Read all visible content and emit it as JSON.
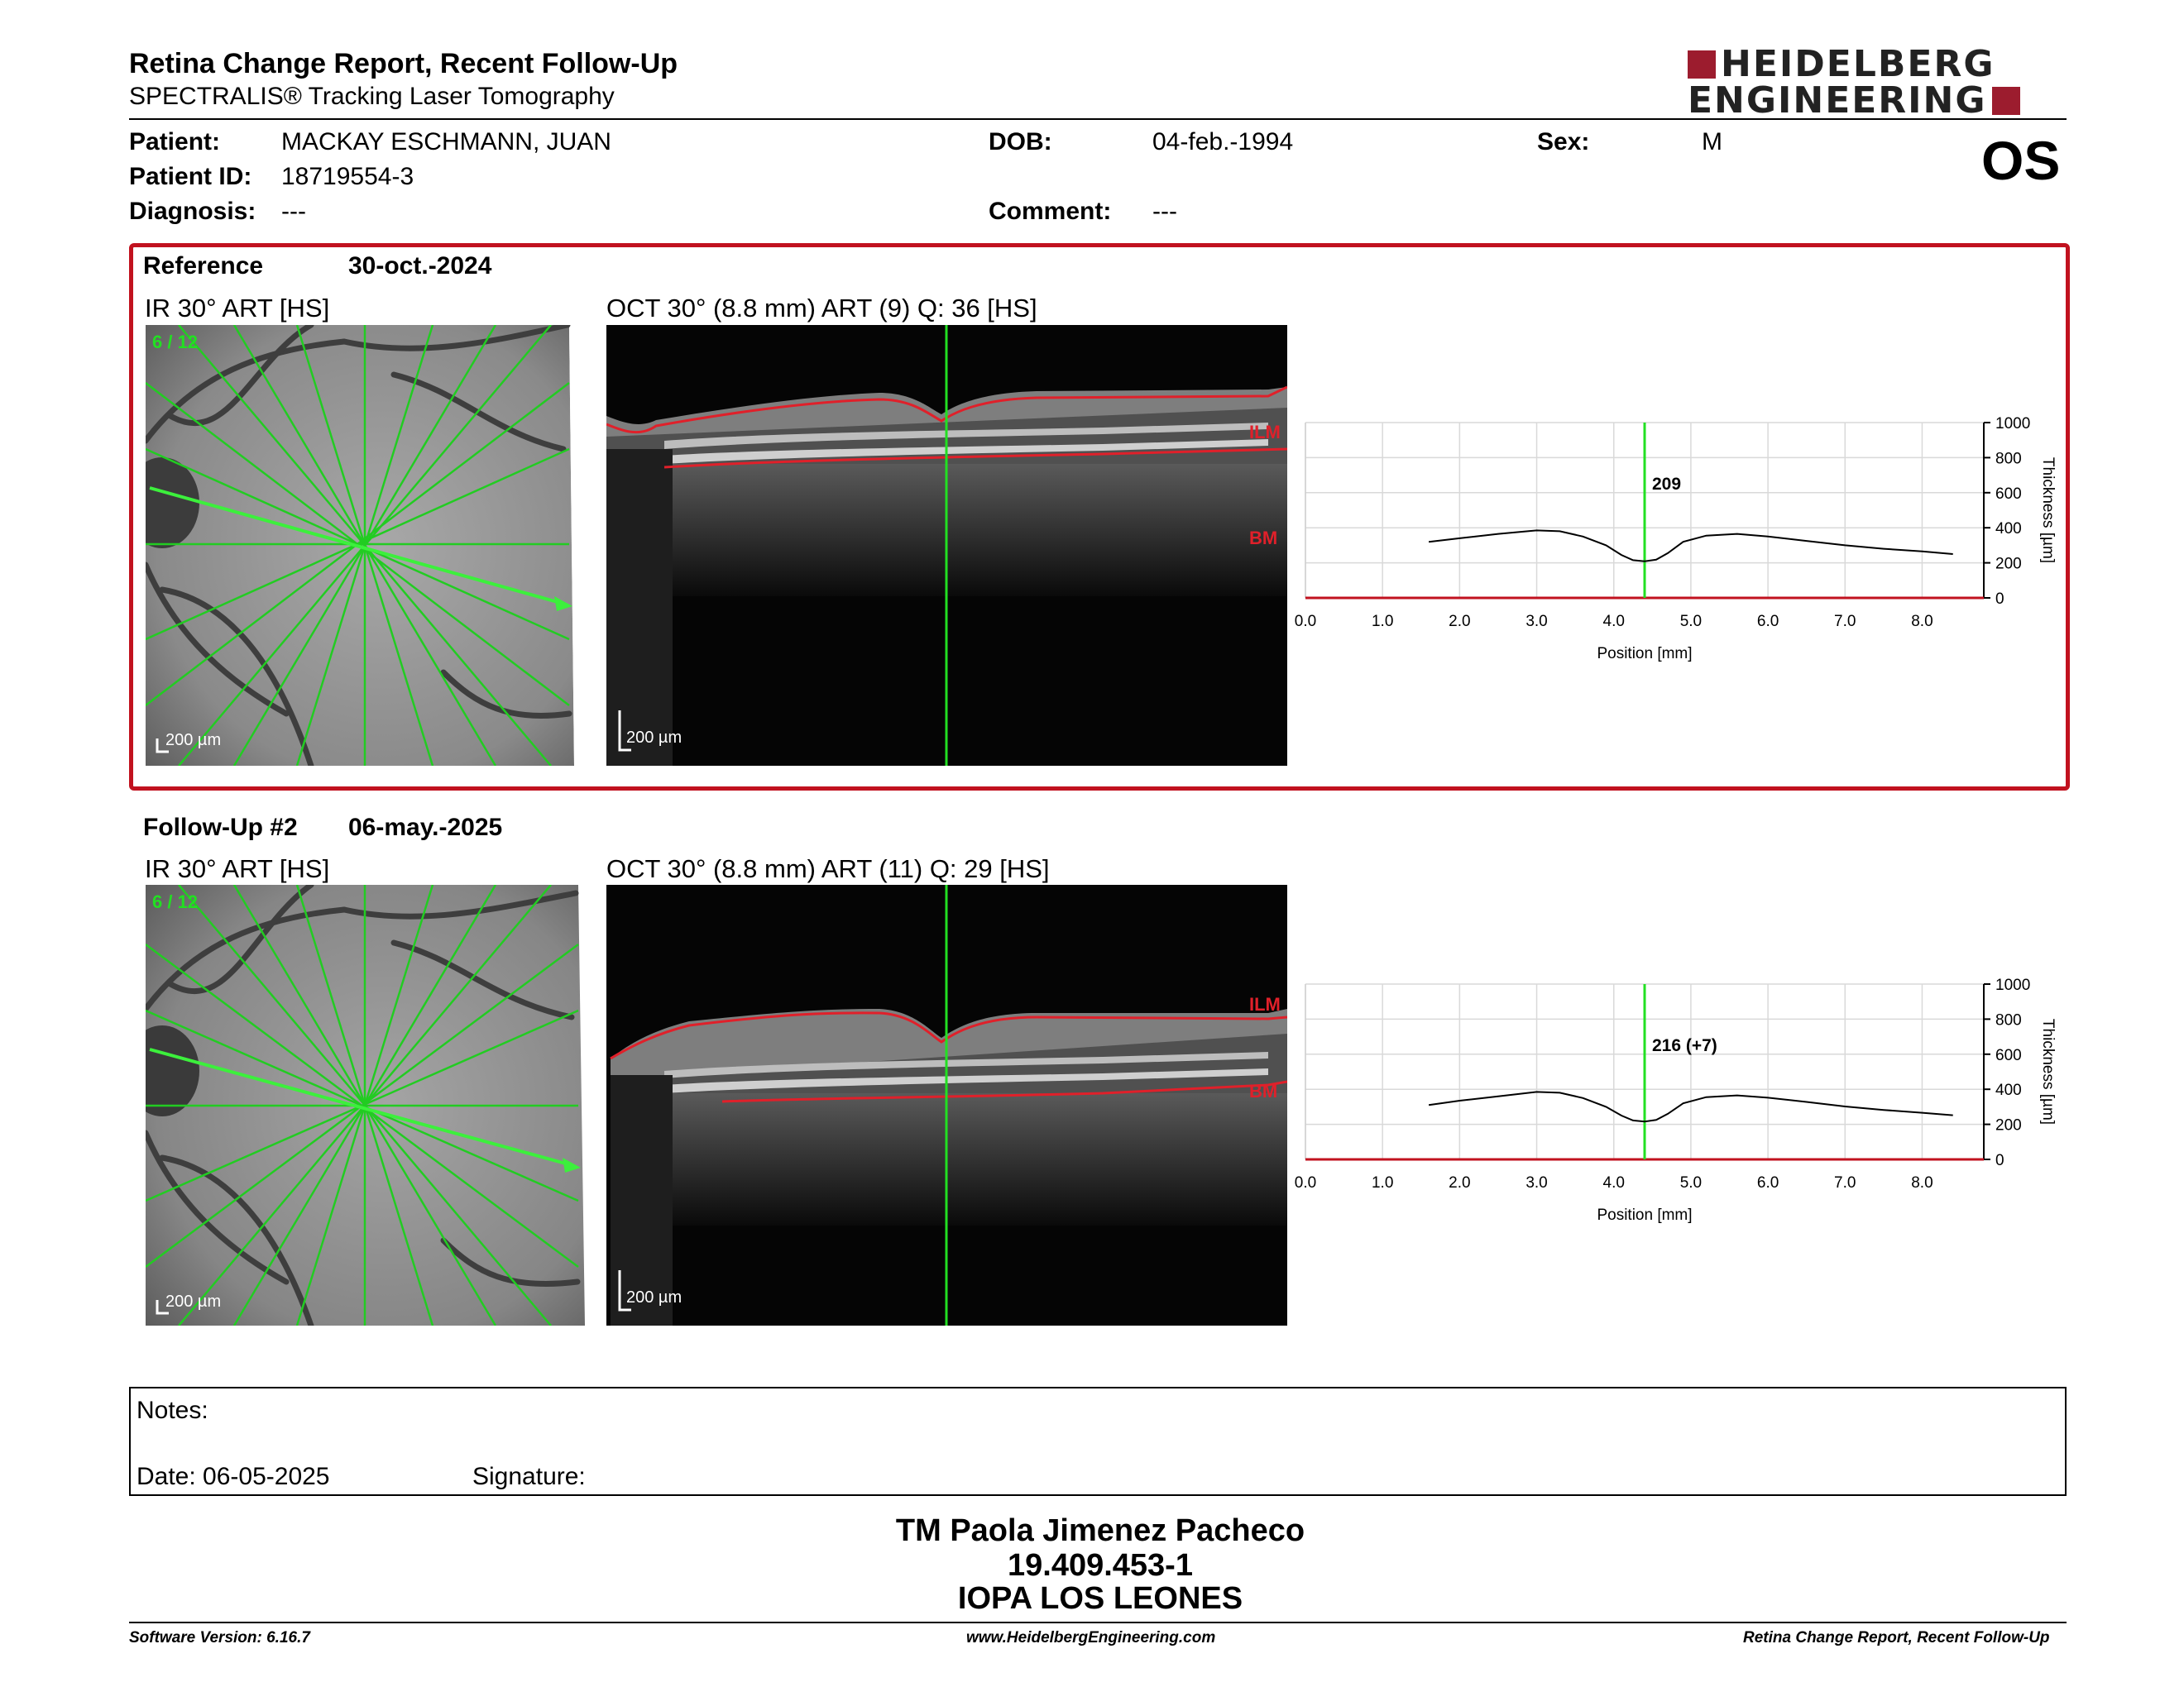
{
  "header": {
    "title": "Retina Change Report, Recent Follow-Up",
    "subtitle": "SPECTRALIS® Tracking Laser Tomography",
    "logo_line1": "HEIDELBERG",
    "logo_line2": "ENGINEERING",
    "eye": "OS"
  },
  "patient": {
    "patient_label": "Patient:",
    "patient_value": "MACKAY ESCHMANN, JUAN",
    "id_label": "Patient ID:",
    "id_value": "18719554-3",
    "diagnosis_label": "Diagnosis:",
    "diagnosis_value": "---",
    "dob_label": "DOB:",
    "dob_value": "04-feb.-1994",
    "comment_label": "Comment:",
    "comment_value": "---",
    "sex_label": "Sex:",
    "sex_value": "M"
  },
  "reference": {
    "label": "Reference",
    "date": "30-oct.-2024",
    "ir_label": "IR 30° ART [HS]",
    "oct_label": "OCT 30° (8.8 mm) ART (9) Q: 36 [HS]",
    "scan_index": "6 / 12",
    "ir_scale": "200 µm",
    "oct_scale": "200 µm",
    "ilm_label": "ILM",
    "bm_label": "BM"
  },
  "followup": {
    "label": "Follow-Up #2",
    "date": "06-may.-2025",
    "ir_label": "IR 30° ART [HS]",
    "oct_label": "OCT 30° (8.8 mm) ART (11) Q: 29 [HS]",
    "scan_index": "6 / 12",
    "ir_scale": "200 µm",
    "oct_scale": "200 µm",
    "ilm_label": "ILM",
    "bm_label": "BM"
  },
  "chart_data": [
    {
      "type": "line",
      "xlabel": "Position [mm]",
      "ylabel": "Thickness [µm]",
      "xlim": [
        0,
        8.8
      ],
      "ylim": [
        0,
        1000
      ],
      "x_ticks": [
        "0.0",
        "1.0",
        "2.0",
        "3.0",
        "4.0",
        "5.0",
        "6.0",
        "7.0",
        "8.0"
      ],
      "y_ticks": [
        "0",
        "200",
        "400",
        "600",
        "800",
        "1000"
      ],
      "marker_x": 4.4,
      "marker_label": "209",
      "x": [
        1.6,
        2.0,
        2.5,
        3.0,
        3.3,
        3.6,
        3.9,
        4.1,
        4.25,
        4.4,
        4.55,
        4.7,
        4.9,
        5.2,
        5.6,
        6.0,
        6.5,
        7.0,
        7.5,
        8.0,
        8.4
      ],
      "y": [
        320,
        340,
        365,
        385,
        380,
        350,
        300,
        245,
        215,
        209,
        218,
        255,
        320,
        355,
        365,
        350,
        325,
        300,
        280,
        265,
        250
      ]
    },
    {
      "type": "line",
      "xlabel": "Position [mm]",
      "ylabel": "Thickness [µm]",
      "xlim": [
        0,
        8.8
      ],
      "ylim": [
        0,
        1000
      ],
      "x_ticks": [
        "0.0",
        "1.0",
        "2.0",
        "3.0",
        "4.0",
        "5.0",
        "6.0",
        "7.0",
        "8.0"
      ],
      "y_ticks": [
        "0",
        "200",
        "400",
        "600",
        "800",
        "1000"
      ],
      "marker_x": 4.4,
      "marker_label": "216 (+7)",
      "x": [
        1.6,
        2.0,
        2.5,
        3.0,
        3.3,
        3.6,
        3.9,
        4.1,
        4.25,
        4.4,
        4.55,
        4.7,
        4.9,
        5.2,
        5.6,
        6.0,
        6.5,
        7.0,
        7.5,
        8.0,
        8.4
      ],
      "y": [
        310,
        335,
        360,
        385,
        380,
        350,
        300,
        250,
        222,
        216,
        225,
        260,
        320,
        355,
        365,
        352,
        328,
        302,
        282,
        266,
        252
      ]
    }
  ],
  "notes": {
    "notes_label": "Notes:",
    "date_label": "Date: 06-05-2025",
    "signature_label": "Signature:"
  },
  "signatory": {
    "name": "TM Paola Jimenez Pacheco",
    "id": "19.409.453-1",
    "institution": "IOPA LOS LEONES"
  },
  "footer": {
    "software": "Software Version: 6.16.7",
    "website": "www.HeidelbergEngineering.com",
    "report": "Retina Change Report, Recent Follow-Up"
  },
  "colors": {
    "accent_red": "#c1121f",
    "logo_red": "#9c1c2e",
    "scan_green": "#22e022",
    "layer_red": "#e0202a"
  }
}
